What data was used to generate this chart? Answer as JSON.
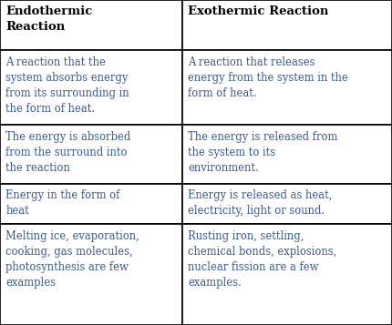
{
  "header": [
    "Endothermic\nReaction",
    "Exothermic Reaction"
  ],
  "rows": [
    [
      "A reaction that the\nsystem absorbs energy\nfrom its surrounding in\nthe form of heat.",
      "A reaction that releases\nenergy from the system in the\nform of heat."
    ],
    [
      "The energy is absorbed\nfrom the surround into\nthe reaction",
      "The energy is released from\nthe system to its\nenvironment."
    ],
    [
      "Energy in the form of\nheat",
      "Energy is released as heat,\nelectricity, light or sound."
    ],
    [
      "Melting ice, evaporation,\ncooking, gas molecules,\nphotosynthesis are few\nexamples",
      "Rusting iron, settling,\nchemical bonds, explosions,\nnuclear fission are a few\nexamples."
    ]
  ],
  "col_splits": [
    0.0,
    0.465,
    1.0
  ],
  "row_splits": [
    0.0,
    0.155,
    0.385,
    0.565,
    0.69,
    1.0
  ],
  "bg_color": "#ffffff",
  "text_color": "#3a5a8a",
  "header_text_color": "#000000",
  "border_color": "#000000",
  "body_font_size": 8.3,
  "header_font_size": 9.5,
  "fig_width": 4.3,
  "fig_height": 3.57,
  "dpi": 100
}
